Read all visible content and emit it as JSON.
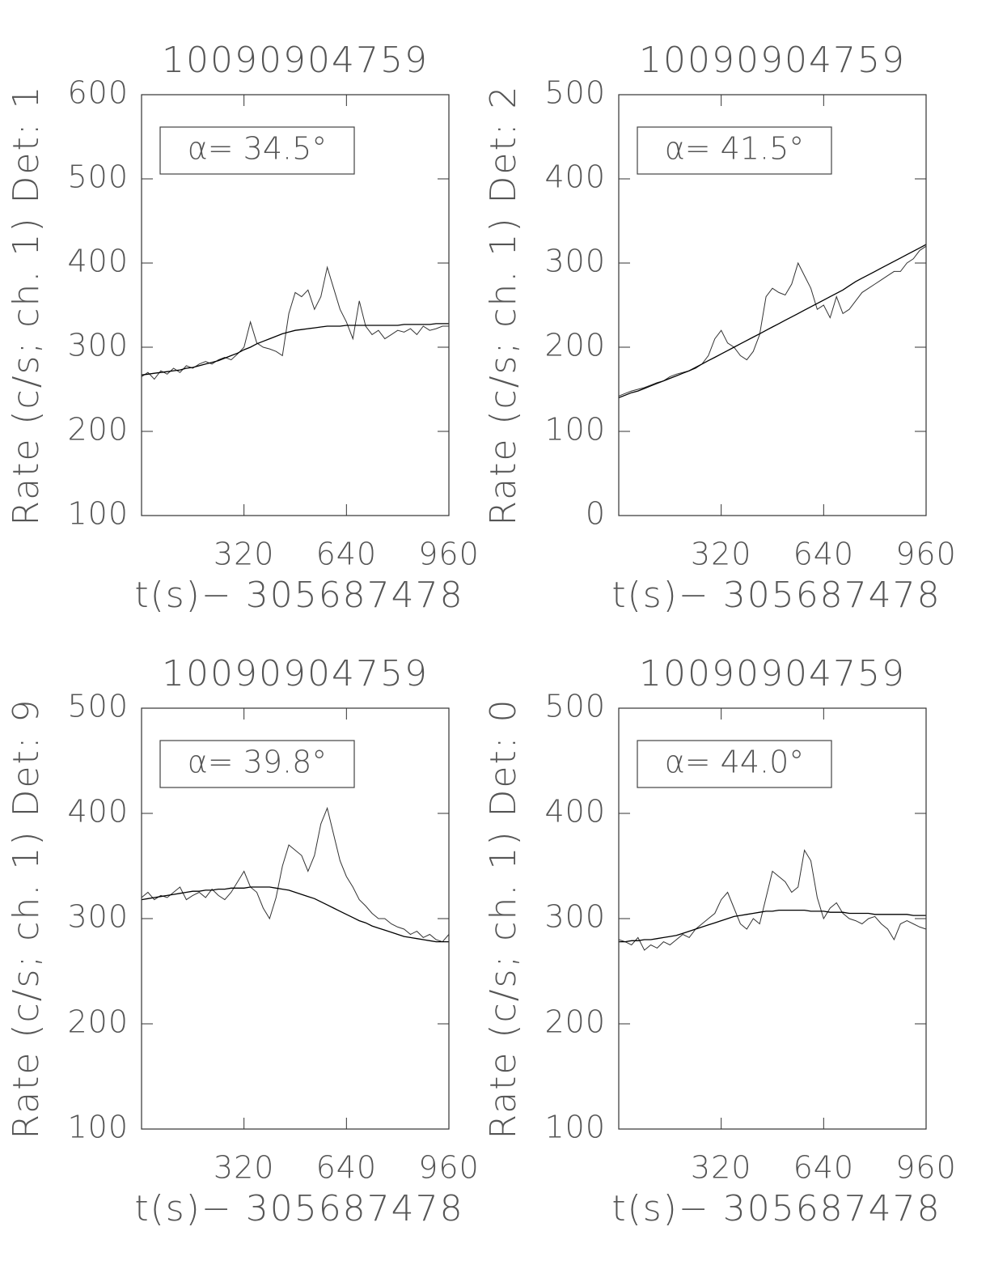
{
  "chart_data": [
    {
      "type": "line",
      "title": "10090904759",
      "xlabel": "t(s)− 305687478",
      "ylabel": "Rate (c/s; ch. 1) Det: 1",
      "annotation": "α= 34.5°",
      "x": [
        0,
        20,
        40,
        60,
        80,
        100,
        120,
        140,
        160,
        180,
        200,
        220,
        240,
        260,
        280,
        300,
        320,
        340,
        360,
        380,
        400,
        420,
        440,
        460,
        480,
        500,
        520,
        540,
        560,
        580,
        600,
        620,
        640,
        660,
        680,
        700,
        720,
        740,
        760,
        780,
        800,
        820,
        840,
        860,
        880,
        900,
        920,
        940,
        960
      ],
      "series": [
        {
          "color": "#333333",
          "values": [
            265,
            270,
            262,
            272,
            268,
            275,
            270,
            278,
            275,
            280,
            283,
            280,
            285,
            288,
            285,
            292,
            300,
            330,
            305,
            300,
            298,
            295,
            290,
            340,
            365,
            360,
            368,
            345,
            360,
            395,
            370,
            345,
            330,
            310,
            355,
            325,
            315,
            320,
            310,
            315,
            320,
            318,
            322,
            315,
            325,
            320,
            322,
            325,
            325
          ]
        },
        {
          "color": "#000000",
          "values": [
            267,
            268,
            269,
            270,
            271,
            272,
            273,
            275,
            276,
            278,
            280,
            282,
            284,
            287,
            290,
            293,
            297,
            300,
            304,
            307,
            310,
            313,
            316,
            318,
            320,
            321,
            322,
            323,
            324,
            325,
            325,
            325,
            326,
            326,
            326,
            326,
            326,
            326,
            326,
            326,
            326,
            327,
            327,
            327,
            327,
            327,
            328,
            328,
            328
          ]
        }
      ],
      "xlim": [
        0,
        960
      ],
      "xticks": [
        320,
        640,
        960
      ],
      "ylim": [
        100,
        600
      ],
      "yticks": [
        100,
        200,
        300,
        400,
        500,
        600
      ]
    },
    {
      "type": "line",
      "title": "10090904759",
      "xlabel": "t(s)− 305687478",
      "ylabel": "Rate (c/s; ch. 1) Det: 2",
      "annotation": "α= 41.5°",
      "x": [
        0,
        20,
        40,
        60,
        80,
        100,
        120,
        140,
        160,
        180,
        200,
        220,
        240,
        260,
        280,
        300,
        320,
        340,
        360,
        380,
        400,
        420,
        440,
        460,
        480,
        500,
        520,
        540,
        560,
        580,
        600,
        620,
        640,
        660,
        680,
        700,
        720,
        740,
        760,
        780,
        800,
        820,
        840,
        860,
        880,
        900,
        920,
        940,
        960
      ],
      "series": [
        {
          "color": "#333333",
          "values": [
            142,
            145,
            148,
            150,
            152,
            155,
            158,
            160,
            165,
            168,
            170,
            172,
            175,
            180,
            190,
            210,
            220,
            205,
            200,
            190,
            185,
            195,
            215,
            260,
            270,
            265,
            262,
            275,
            300,
            285,
            270,
            245,
            250,
            235,
            260,
            240,
            245,
            255,
            265,
            270,
            275,
            280,
            285,
            290,
            290,
            300,
            305,
            315,
            320
          ]
        },
        {
          "color": "#000000",
          "values": [
            140,
            143,
            146,
            148,
            151,
            154,
            157,
            160,
            163,
            166,
            169,
            172,
            176,
            180,
            184,
            188,
            192,
            196,
            200,
            204,
            208,
            212,
            216,
            220,
            224,
            228,
            232,
            236,
            240,
            244,
            248,
            252,
            256,
            260,
            264,
            268,
            273,
            278,
            282,
            286,
            290,
            294,
            298,
            302,
            306,
            310,
            314,
            318,
            322
          ]
        }
      ],
      "xlim": [
        0,
        960
      ],
      "xticks": [
        320,
        640,
        960
      ],
      "ylim": [
        0,
        500
      ],
      "yticks": [
        0,
        100,
        200,
        300,
        400,
        500
      ]
    },
    {
      "type": "line",
      "title": "10090904759",
      "xlabel": "t(s)− 305687478",
      "ylabel": "Rate (c/s; ch. 1) Det: 9",
      "annotation": "α= 39.8°",
      "x": [
        0,
        20,
        40,
        60,
        80,
        100,
        120,
        140,
        160,
        180,
        200,
        220,
        240,
        260,
        280,
        300,
        320,
        340,
        360,
        380,
        400,
        420,
        440,
        460,
        480,
        500,
        520,
        540,
        560,
        580,
        600,
        620,
        640,
        660,
        680,
        700,
        720,
        740,
        760,
        780,
        800,
        820,
        840,
        860,
        880,
        900,
        920,
        940,
        960
      ],
      "series": [
        {
          "color": "#333333",
          "values": [
            320,
            325,
            318,
            322,
            320,
            325,
            330,
            318,
            322,
            325,
            320,
            328,
            322,
            318,
            325,
            335,
            345,
            330,
            325,
            310,
            300,
            320,
            350,
            370,
            365,
            360,
            345,
            360,
            390,
            405,
            380,
            355,
            340,
            330,
            318,
            312,
            305,
            300,
            300,
            295,
            292,
            290,
            285,
            288,
            282,
            285,
            280,
            278,
            285
          ]
        },
        {
          "color": "#000000",
          "values": [
            318,
            319,
            320,
            321,
            322,
            323,
            324,
            325,
            326,
            326,
            327,
            327,
            328,
            328,
            329,
            329,
            329,
            330,
            330,
            330,
            330,
            329,
            328,
            327,
            325,
            323,
            321,
            319,
            316,
            313,
            310,
            307,
            304,
            301,
            298,
            296,
            293,
            291,
            289,
            287,
            285,
            283,
            282,
            281,
            280,
            279,
            278,
            278,
            278
          ]
        }
      ],
      "xlim": [
        0,
        960
      ],
      "xticks": [
        320,
        640,
        960
      ],
      "ylim": [
        100,
        500
      ],
      "yticks": [
        100,
        200,
        300,
        400,
        500
      ]
    },
    {
      "type": "line",
      "title": "10090904759",
      "xlabel": "t(s)− 305687478",
      "ylabel": "Rate (c/s; ch. 1) Det: 0",
      "annotation": "α= 44.0°",
      "x": [
        0,
        20,
        40,
        60,
        80,
        100,
        120,
        140,
        160,
        180,
        200,
        220,
        240,
        260,
        280,
        300,
        320,
        340,
        360,
        380,
        400,
        420,
        440,
        460,
        480,
        500,
        520,
        540,
        560,
        580,
        600,
        620,
        640,
        660,
        680,
        700,
        720,
        740,
        760,
        780,
        800,
        820,
        840,
        860,
        880,
        900,
        920,
        940,
        960
      ],
      "series": [
        {
          "color": "#333333",
          "values": [
            280,
            278,
            275,
            282,
            270,
            275,
            272,
            278,
            275,
            280,
            285,
            282,
            290,
            295,
            300,
            305,
            318,
            325,
            310,
            295,
            290,
            300,
            295,
            320,
            345,
            340,
            335,
            325,
            330,
            365,
            355,
            320,
            300,
            310,
            315,
            305,
            300,
            298,
            295,
            300,
            302,
            295,
            290,
            280,
            295,
            298,
            295,
            292,
            290
          ]
        },
        {
          "color": "#000000",
          "values": [
            278,
            278,
            279,
            279,
            280,
            280,
            281,
            282,
            283,
            284,
            286,
            288,
            290,
            292,
            294,
            296,
            298,
            300,
            302,
            303,
            304,
            305,
            306,
            307,
            307,
            308,
            308,
            308,
            308,
            308,
            307,
            307,
            307,
            306,
            306,
            306,
            305,
            305,
            305,
            305,
            304,
            304,
            304,
            304,
            304,
            304,
            303,
            303,
            303
          ]
        }
      ],
      "xlim": [
        0,
        960
      ],
      "xticks": [
        320,
        640,
        960
      ],
      "ylim": [
        100,
        500
      ],
      "yticks": [
        100,
        200,
        300,
        400,
        500
      ]
    }
  ]
}
